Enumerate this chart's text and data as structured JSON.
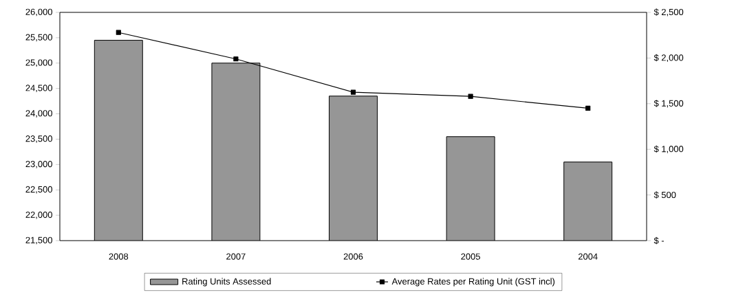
{
  "chart_data": {
    "type": "bar",
    "categories": [
      "2008",
      "2007",
      "2006",
      "2005",
      "2004"
    ],
    "series": [
      {
        "name": "Rating Units Assessed",
        "color": "#969696",
        "values": [
          25450,
          25000,
          24350,
          23550,
          23050
        ]
      },
      {
        "name": "Average Rates per Rating Unit (GST incl)",
        "type": "line",
        "axis": "y2",
        "color": "#000000",
        "values": [
          2280,
          1990,
          1625,
          1580,
          1450
        ]
      }
    ],
    "ylim": [
      21500,
      26000
    ],
    "yticks": [
      {
        "value": 21500,
        "label": "21,500"
      },
      {
        "value": 22000,
        "label": "22,000"
      },
      {
        "value": 22500,
        "label": "22,500"
      },
      {
        "value": 23000,
        "label": "23,000"
      },
      {
        "value": 23500,
        "label": "23,500"
      },
      {
        "value": 24000,
        "label": "24,000"
      },
      {
        "value": 24500,
        "label": "24,500"
      },
      {
        "value": 25000,
        "label": "25,000"
      },
      {
        "value": 25500,
        "label": "25,500"
      },
      {
        "value": 26000,
        "label": "26,000"
      }
    ],
    "y2lim": [
      0,
      2500
    ],
    "y2ticks": [
      {
        "value": 0,
        "label": "$ -"
      },
      {
        "value": 500,
        "label": "$ 500"
      },
      {
        "value": 1000,
        "label": "$ 1,000"
      },
      {
        "value": 1500,
        "label": "$ 1,500"
      },
      {
        "value": 2000,
        "label": "$ 2,000"
      },
      {
        "value": 2500,
        "label": "$ 2,500"
      }
    ],
    "marker": "square",
    "legend": "bottom"
  }
}
